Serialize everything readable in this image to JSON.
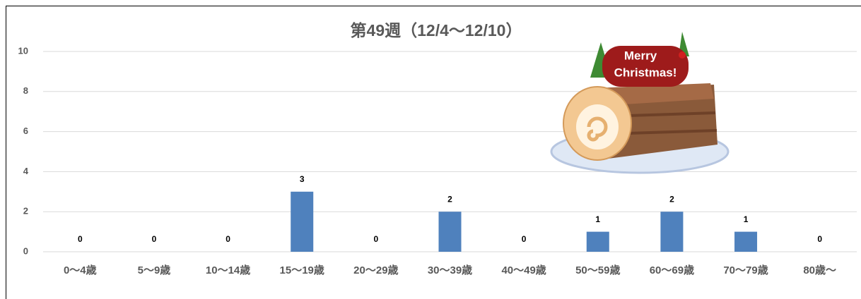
{
  "chart_data": {
    "type": "bar",
    "title": "第49週（12/4～12/10）",
    "categories": [
      "0～4歳",
      "5～9歳",
      "10～14歳",
      "15～19歳",
      "20～29歳",
      "30～39歳",
      "40～49歳",
      "50～59歳",
      "60～69歳",
      "70～79歳",
      "80歳～"
    ],
    "values": [
      0,
      0,
      0,
      3,
      0,
      2,
      0,
      1,
      2,
      1,
      0
    ],
    "color": "#4f81bd",
    "ylim": [
      0,
      10
    ],
    "yticks": [
      0,
      2,
      4,
      6,
      8,
      10
    ],
    "grid": true,
    "annotations": [
      "Merry",
      "Christmas!"
    ]
  }
}
